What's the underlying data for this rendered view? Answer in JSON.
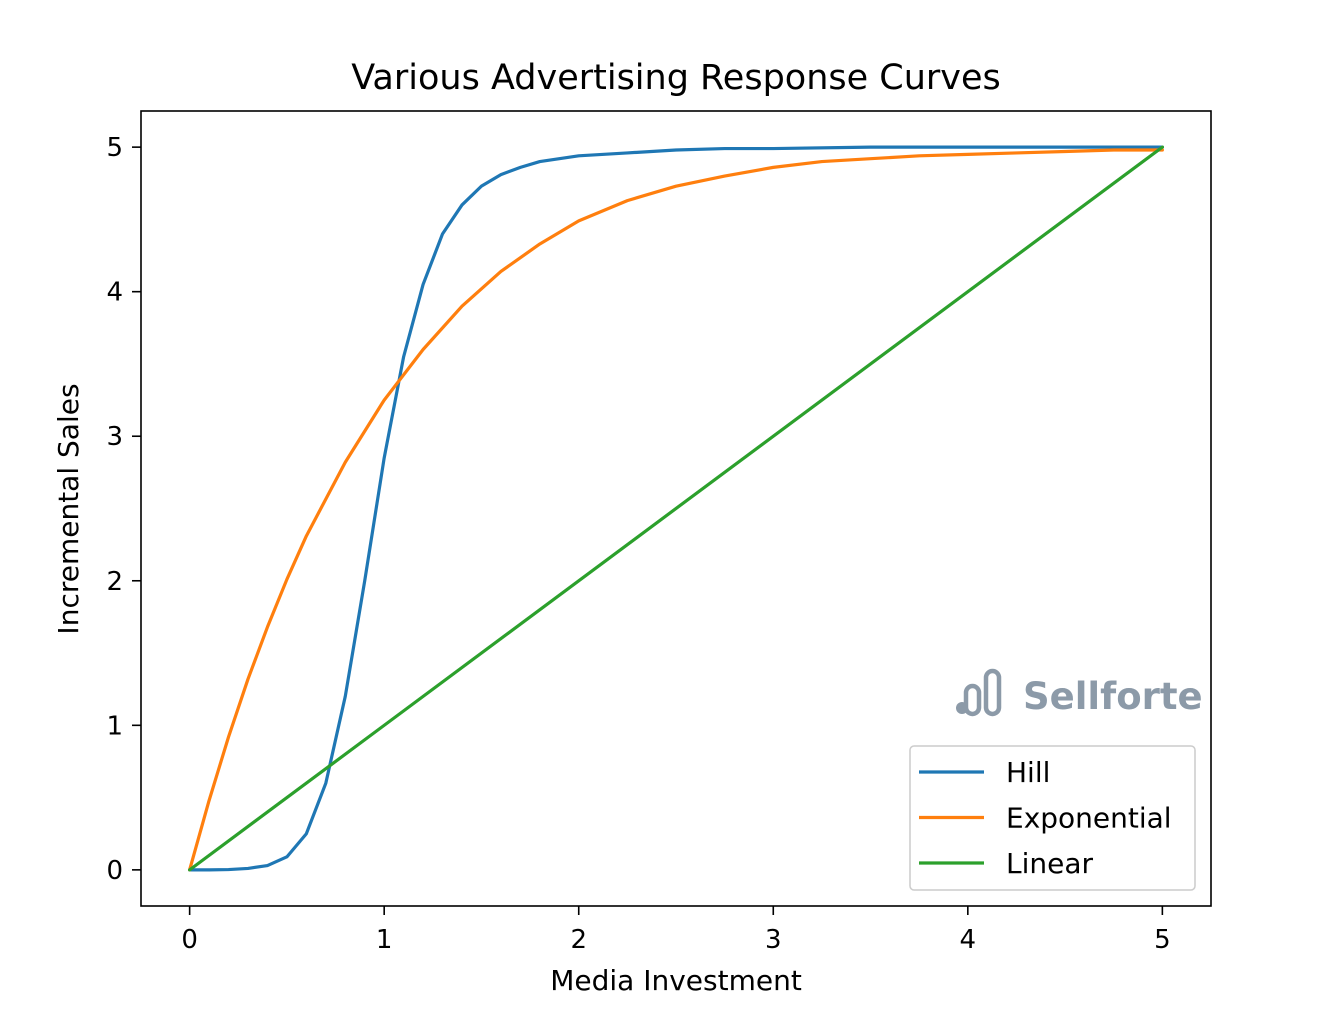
{
  "chart_data": {
    "type": "line",
    "title": "Various Advertising Response Curves",
    "xlabel": "Media Investment",
    "ylabel": "Incremental Sales",
    "xlim": [
      -0.25,
      5.25
    ],
    "ylim": [
      -0.25,
      5.25
    ],
    "xticks": [
      0,
      1,
      2,
      3,
      4,
      5
    ],
    "yticks": [
      0,
      1,
      2,
      3,
      4,
      5
    ],
    "grid": false,
    "legend_position": "lower-right",
    "series": [
      {
        "name": "Hill",
        "color": "#1f77b4",
        "x": [
          0,
          0.1,
          0.2,
          0.3,
          0.4,
          0.5,
          0.6,
          0.7,
          0.8,
          0.9,
          1.0,
          1.1,
          1.2,
          1.3,
          1.4,
          1.5,
          1.6,
          1.7,
          1.8,
          1.9,
          2.0,
          2.25,
          2.5,
          2.75,
          3.0,
          3.5,
          4.0,
          4.5,
          5.0
        ],
        "y": [
          0,
          0.0,
          0.002,
          0.01,
          0.03,
          0.09,
          0.25,
          0.6,
          1.2,
          2.0,
          2.85,
          3.55,
          4.05,
          4.4,
          4.6,
          4.73,
          4.81,
          4.86,
          4.9,
          4.92,
          4.94,
          4.96,
          4.98,
          4.99,
          4.99,
          5.0,
          5.0,
          5.0,
          5.0
        ]
      },
      {
        "name": "Exponential",
        "color": "#ff7f0e",
        "x": [
          0,
          0.1,
          0.2,
          0.3,
          0.4,
          0.5,
          0.6,
          0.8,
          1.0,
          1.2,
          1.4,
          1.6,
          1.8,
          2.0,
          2.25,
          2.5,
          2.75,
          3.0,
          3.25,
          3.5,
          3.75,
          4.0,
          4.25,
          4.5,
          4.75,
          5.0
        ],
        "y": [
          0,
          0.48,
          0.92,
          1.32,
          1.68,
          2.01,
          2.31,
          2.82,
          3.25,
          3.6,
          3.9,
          4.14,
          4.33,
          4.49,
          4.63,
          4.73,
          4.8,
          4.86,
          4.9,
          4.92,
          4.94,
          4.95,
          4.96,
          4.97,
          4.98,
          4.98
        ]
      },
      {
        "name": "Linear",
        "color": "#2ca02c",
        "x": [
          0,
          5
        ],
        "y": [
          0,
          5
        ]
      }
    ]
  },
  "watermark": {
    "brand": "Sellforte"
  },
  "colors": {
    "watermark": "#8c9aa8",
    "axes": "#000000",
    "legend_border": "#cccccc"
  }
}
